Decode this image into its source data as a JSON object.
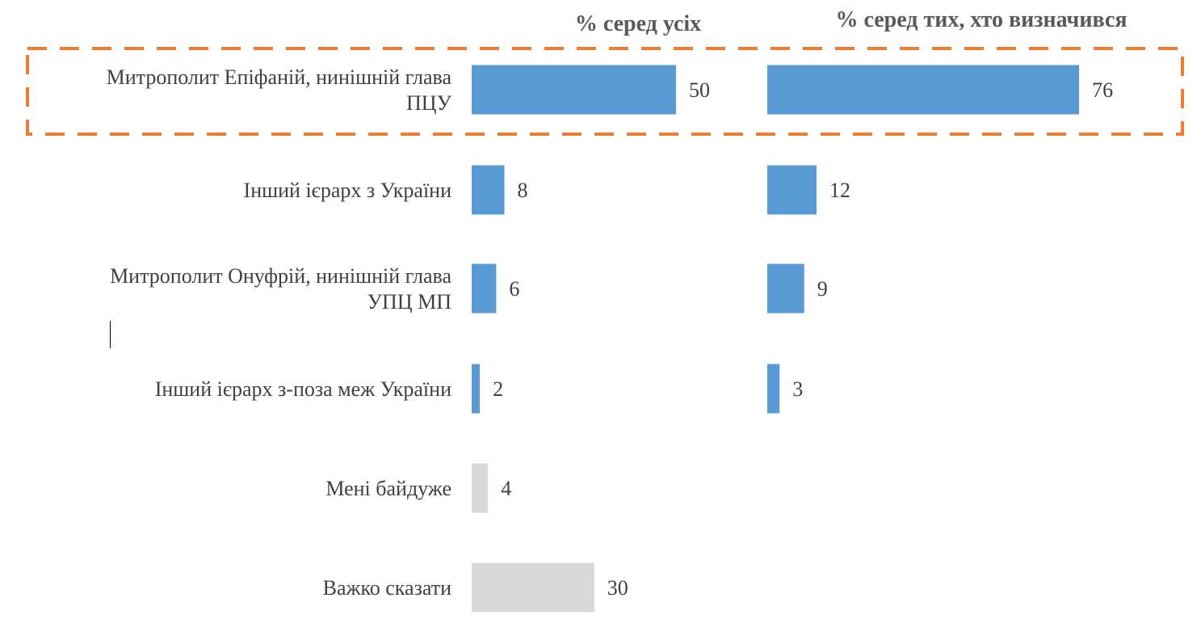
{
  "chart_data": {
    "type": "bar",
    "orientation": "horizontal",
    "categories": [
      [
        "Митрополит Епіфаній, нинішній глава",
        "ПЦУ"
      ],
      [
        "Інший ієрарх з України"
      ],
      [
        "Митрополит Онуфрій, нинішній глава",
        "УПЦ МП"
      ],
      [
        "Інший ієрарх з-поза меж України"
      ],
      [
        "Мені байдуже"
      ],
      [
        "Важко сказати"
      ]
    ],
    "series": [
      {
        "name": "% серед усіх",
        "values": [
          50,
          8,
          6,
          2,
          4,
          30
        ],
        "colors": [
          "#5b9bd5",
          "#5b9bd5",
          "#5b9bd5",
          "#5b9bd5",
          "#d9d9d9",
          "#d9d9d9"
        ]
      },
      {
        "name": "% серед тих, хто визначився",
        "values": [
          76,
          12,
          9,
          3,
          null,
          null
        ],
        "colors": [
          "#5b9bd5",
          "#5b9bd5",
          "#5b9bd5",
          "#5b9bd5",
          null,
          null
        ]
      }
    ],
    "highlight": {
      "category_index": 0,
      "style": "dashed",
      "color": "#ed7d31"
    },
    "grid": false,
    "legend": "none"
  }
}
